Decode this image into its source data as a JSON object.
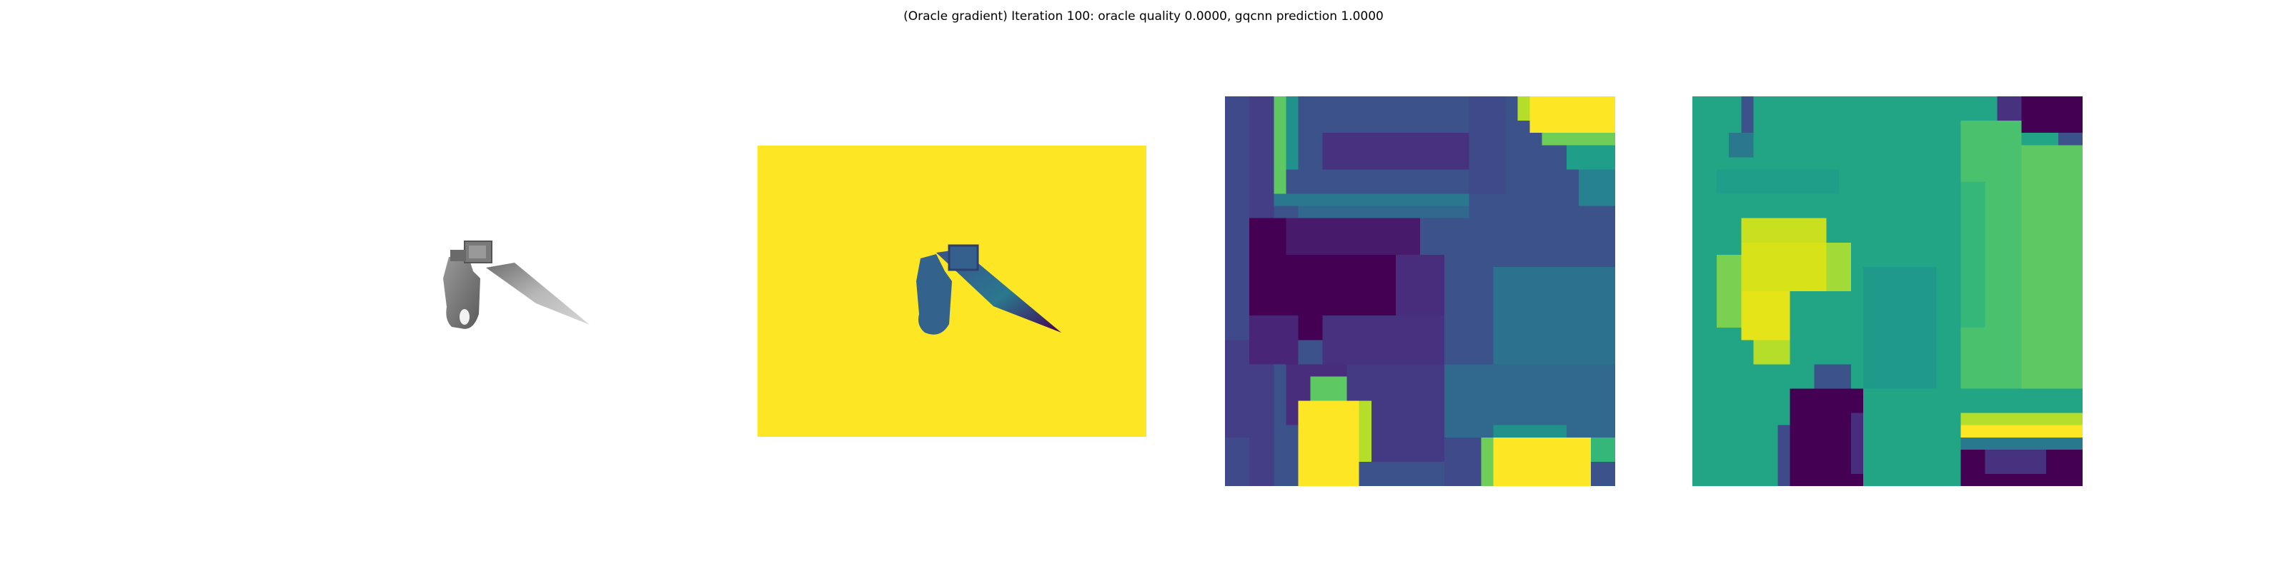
{
  "figure": {
    "title": "(Oracle gradient) Iteration 100: oracle quality 0.0000, gqcnn prediction 1.0000"
  },
  "panels": [
    {
      "id": "rendered-object",
      "colormap": "gray"
    },
    {
      "id": "depth-image",
      "colormap": "viridis"
    },
    {
      "id": "depth-crop",
      "colormap": "viridis"
    },
    {
      "id": "gradient-crop",
      "colormap": "viridis"
    }
  ],
  "colors": {
    "viridis_yellow": "#fde725",
    "viridis_purple": "#440154",
    "viridis_blue": "#3b528b",
    "viridis_teal": "#21918c",
    "viridis_green": "#5ec962",
    "object_gray": "#8a8a8a"
  }
}
